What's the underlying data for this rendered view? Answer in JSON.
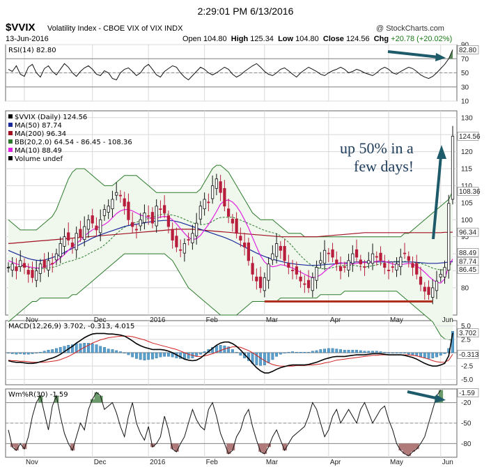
{
  "timestamp": "2:29:01 PM 6/13/2016",
  "header": {
    "symbol": "$VVIX",
    "name": "Volatility Index - CBOE VIX of VIX INDX",
    "credit": "@ StockCharts.com",
    "date": "13-Jun-2016",
    "open_label": "Open",
    "open": "104.80",
    "high_label": "High",
    "high": "125.34",
    "low_label": "Low",
    "low": "104.80",
    "close_label": "Close",
    "close": "124.56",
    "chg_label": "Chg",
    "chg": "+20.78 (+20.02%)"
  },
  "chart_data": [
    {
      "type": "line",
      "panel": "RSI",
      "legend": "RSI(14) 82.80",
      "ylim": [
        10,
        90
      ],
      "yticks": [
        90,
        70,
        50,
        30,
        10
      ],
      "last_value_label": "82.80",
      "values": [
        55,
        52,
        60,
        48,
        45,
        58,
        62,
        50,
        44,
        56,
        60,
        52,
        47,
        55,
        63,
        58,
        50,
        45,
        52,
        57,
        60,
        55,
        48,
        46,
        53,
        50,
        42,
        40,
        50,
        55,
        57,
        52,
        46,
        50,
        58,
        62,
        55,
        47,
        44,
        52,
        56,
        60,
        58,
        50,
        44,
        40,
        46,
        52,
        58,
        55,
        50,
        47,
        50,
        54,
        58,
        55,
        48,
        44,
        47,
        52,
        56,
        60,
        63,
        58,
        52,
        48,
        46,
        50,
        55,
        57,
        53,
        48,
        44,
        50,
        54,
        58,
        55,
        52,
        48,
        46,
        50,
        53,
        55,
        58,
        55,
        50,
        52,
        55,
        53,
        50,
        48,
        46,
        50,
        55,
        58,
        55,
        50,
        48,
        52,
        55,
        58,
        56,
        52,
        47,
        44,
        42,
        45,
        50,
        56,
        62,
        70,
        82.8
      ],
      "annotation": "arrow down-right to latest reading"
    },
    {
      "type": "candlestick",
      "panel": "price",
      "legend": [
        "$VVIX (Daily) 124.56",
        "MA(50) 87.74",
        "MA(200) 96.34",
        "BB(20,2.0) 64.54 - 86.45 - 108.36",
        "MA(10) 88.49",
        "Volume undef"
      ],
      "series_colors": {
        "MA50": "#1a2a9a",
        "MA200": "#a01020",
        "BB": "#2a7a2a",
        "MA10": "#e020e0"
      },
      "ylim": [
        72,
        132
      ],
      "yticks": [
        130,
        125,
        120,
        115,
        110,
        105,
        100,
        95,
        90,
        85,
        80
      ],
      "price_labels": [
        "124.56",
        "108.36",
        "96.34",
        "87.74",
        "86.45",
        "88.49"
      ],
      "x_labels": [
        "Nov",
        "Dec",
        "2016",
        "Feb",
        "Mar",
        "Apr",
        "May",
        "Jun"
      ],
      "close": [
        86,
        87,
        85,
        88,
        86,
        84,
        83,
        85,
        87,
        86,
        88,
        87,
        90,
        93,
        95,
        94,
        92,
        96,
        95,
        98,
        100,
        99,
        97,
        100,
        103,
        104,
        106,
        108,
        107,
        104,
        100,
        98,
        97,
        100,
        102,
        101,
        99,
        104,
        103,
        102,
        98,
        94,
        92,
        91,
        93,
        94,
        96,
        99,
        104,
        106,
        105,
        110,
        112,
        108,
        104,
        101,
        99,
        96,
        94,
        92,
        88,
        84,
        82,
        80,
        83,
        87,
        90,
        93,
        91,
        88,
        86,
        85,
        84,
        82,
        81,
        80,
        83,
        86,
        88,
        91,
        90,
        89,
        87,
        85,
        86,
        88,
        90,
        89,
        87,
        86,
        88,
        90,
        89,
        88,
        86,
        85,
        86,
        87,
        89,
        90,
        88,
        86,
        84,
        81,
        79,
        78,
        80,
        82,
        84,
        86,
        104.8,
        124.56
      ],
      "ma50": [
        91,
        90.5,
        90,
        89.5,
        89,
        88.6,
        88.3,
        88.1,
        88,
        88.2,
        88.5,
        88.9,
        89.3,
        89.8,
        90.4,
        91,
        91.6,
        92.2,
        92.8,
        93.4,
        94,
        94.6,
        95.1,
        95.6,
        96,
        96.4,
        96.8,
        97.2,
        97.6,
        98,
        98.3,
        98.5,
        98.7,
        98.9,
        99.1,
        99.3,
        99.5,
        99.6,
        99.7,
        99.8,
        99.8,
        99.7,
        99.5,
        99.2,
        98.8,
        98.4,
        98,
        97.6,
        97.2,
        96.8,
        96.4,
        96,
        95.6,
        95.2,
        94.8,
        94.3,
        93.8,
        93.2,
        92.6,
        92,
        91.4,
        90.8,
        90.2,
        89.7,
        89.2,
        88.8,
        88.4,
        88.1,
        87.8,
        87.5,
        87.3,
        87.1,
        86.9,
        86.8,
        86.7,
        86.6,
        86.6,
        86.6,
        86.7,
        86.8,
        86.9,
        87,
        87.1,
        87.2,
        87.3,
        87.4,
        87.5,
        87.6,
        87.6,
        87.6,
        87.6,
        87.6,
        87.6,
        87.6,
        87.6,
        87.6,
        87.6,
        87.6,
        87.6,
        87.6,
        87.6,
        87.6,
        87.5,
        87.4,
        87.3,
        87.2,
        87.2,
        87.2,
        87.3,
        87.4,
        87.6,
        87.74
      ],
      "ma200": [
        93,
        93.1,
        93.2,
        93.3,
        93.4,
        93.5,
        93.6,
        93.7,
        93.8,
        93.9,
        94,
        94.1,
        94.2,
        94.3,
        94.4,
        94.5,
        94.6,
        94.7,
        94.8,
        94.9,
        95,
        95.1,
        95.2,
        95.3,
        95.4,
        95.5,
        95.6,
        95.7,
        95.8,
        95.9,
        96,
        96.1,
        96.2,
        96.3,
        96.4,
        96.5,
        96.6,
        96.7,
        96.8,
        96.9,
        97,
        97.1,
        97.2,
        97.2,
        97.2,
        97.2,
        97.2,
        97.1,
        97,
        96.9,
        96.8,
        96.7,
        96.6,
        96.5,
        96.4,
        96.3,
        96.2,
        96.1,
        96,
        95.9,
        95.8,
        95.7,
        95.6,
        95.5,
        95.4,
        95.3,
        95.2,
        95.1,
        95,
        95,
        95,
        95,
        95,
        95,
        95,
        95,
        95,
        95,
        95.1,
        95.2,
        95.3,
        95.4,
        95.5,
        95.6,
        95.7,
        95.8,
        95.9,
        96,
        96.1,
        96.2,
        96.2,
        96.2,
        96.2,
        96.2,
        96.2,
        96.2,
        96.2,
        96.2,
        96.2,
        96.2,
        96.2,
        96.2,
        96.2,
        96.2,
        96.2,
        96.2,
        96.2,
        96.2,
        96.2,
        96.3,
        96.3,
        96.34
      ],
      "ma10": [
        88,
        87.5,
        87,
        86.8,
        86.5,
        86.2,
        86,
        85.8,
        85.9,
        86.2,
        86.6,
        87,
        87.8,
        88.8,
        89.8,
        91,
        92.2,
        93,
        94,
        95.2,
        96.2,
        97,
        97.6,
        98,
        98.6,
        99.4,
        100.6,
        101.8,
        102.6,
        103,
        103,
        102.6,
        102,
        101.4,
        101,
        100.6,
        100.3,
        100.5,
        100.8,
        101,
        100.8,
        100,
        98.8,
        97.4,
        96,
        94.8,
        94.2,
        94.4,
        95.4,
        97,
        98.6,
        100.4,
        102.4,
        104.6,
        105.6,
        105.8,
        105.2,
        104,
        102.2,
        100,
        97.6,
        94.8,
        92,
        89.4,
        87.6,
        86.6,
        86.2,
        86.4,
        86.8,
        86.6,
        86.2,
        85.8,
        85.2,
        84.6,
        84,
        83.4,
        83,
        83.2,
        83.8,
        84.8,
        85.8,
        86.6,
        87.2,
        87.4,
        87.2,
        87,
        87,
        87.2,
        87.4,
        87.4,
        87.4,
        87.6,
        87.8,
        88,
        87.8,
        87.4,
        87,
        86.8,
        86.8,
        87,
        87.2,
        87,
        86.4,
        85.6,
        84.6,
        83.4,
        82.4,
        81.6,
        81.4,
        82.6,
        86.4,
        88.49
      ],
      "bb_upper": [
        100,
        99,
        98,
        97,
        97,
        97,
        97,
        97,
        98,
        99,
        100,
        101,
        103,
        106,
        109,
        112,
        114,
        115,
        115,
        115,
        114,
        113,
        112,
        111,
        110,
        110,
        110,
        111,
        112,
        113,
        113,
        113,
        113,
        112,
        111,
        110,
        109,
        108,
        108,
        108,
        108,
        108,
        108,
        108,
        108,
        108,
        108,
        108,
        109,
        111,
        113,
        115,
        116,
        116,
        115,
        114,
        112,
        110,
        108,
        106,
        104,
        102,
        101,
        100,
        100,
        100,
        100,
        99,
        98,
        97,
        96,
        96,
        96,
        96,
        95,
        95,
        95,
        95,
        95,
        95,
        95,
        95,
        95,
        95,
        95,
        95,
        95,
        95,
        95,
        95,
        95,
        95,
        95,
        95,
        95,
        95,
        95,
        95,
        95,
        96,
        96,
        97,
        98,
        99,
        100,
        101,
        102,
        103,
        104,
        105,
        106,
        108.36
      ],
      "bb_lower": [
        70,
        71,
        72,
        73,
        74,
        75,
        76,
        76,
        77,
        77,
        77,
        77,
        77,
        77,
        77,
        77,
        78,
        78,
        79,
        80,
        81,
        82,
        83,
        84,
        85,
        86,
        87,
        88,
        89,
        90,
        90,
        90,
        90,
        90,
        90,
        90,
        90,
        90,
        90,
        90,
        89,
        88,
        86,
        84,
        82,
        80,
        79,
        78,
        77,
        76,
        75,
        74,
        73,
        72,
        72,
        72,
        72,
        72,
        73,
        74,
        75,
        76,
        76,
        76,
        76,
        76,
        76,
        76,
        77,
        77,
        77,
        77,
        77,
        77,
        77,
        77,
        77,
        77,
        78,
        78,
        78,
        78,
        78,
        78,
        79,
        79,
        79,
        79,
        79,
        79,
        79,
        79,
        79,
        79,
        79,
        79,
        79,
        79,
        78,
        77,
        76,
        75,
        74,
        73,
        72,
        71,
        70,
        68,
        66,
        65,
        64.8,
        64.54
      ],
      "annotation": "up 50% in a few days!"
    },
    {
      "type": "bar",
      "panel": "MACD",
      "legend": "MACD(12,26,9) 3.702, -0.313, 4.015",
      "ylim": [
        -6,
        6
      ],
      "yticks": [
        5,
        2.5,
        0,
        -2.5,
        -5
      ],
      "tick_labels": [
        "5.0",
        "2.5",
        "0.0",
        "-2.5",
        "-5.0"
      ],
      "price_labels": [
        "3.702",
        "-0.313"
      ],
      "macd": [
        -1.5,
        -1.7,
        -1.8,
        -1.8,
        -1.9,
        -2,
        -2,
        -1.9,
        -1.7,
        -1.5,
        -1.2,
        -1,
        -0.7,
        -0.3,
        0.2,
        0.7,
        1.2,
        1.8,
        2.3,
        2.8,
        3.2,
        3.5,
        3.6,
        3.6,
        3.6,
        3.5,
        3.5,
        3.4,
        3.3,
        3.1,
        2.7,
        2.2,
        1.7,
        1.3,
        1,
        0.8,
        0.6,
        0.6,
        0.6,
        0.5,
        0.3,
        0,
        -0.4,
        -0.8,
        -1.2,
        -1.4,
        -1.5,
        -1.4,
        -1,
        -0.4,
        0.2,
        0.8,
        1.4,
        1.8,
        2,
        2,
        1.7,
        1.2,
        0.5,
        -0.3,
        -1.1,
        -2,
        -2.8,
        -3.4,
        -3.8,
        -3.8,
        -3.5,
        -3.1,
        -2.8,
        -2.6,
        -2.4,
        -2.3,
        -2.3,
        -2.3,
        -2.3,
        -2.2,
        -2,
        -1.8,
        -1.5,
        -1.2,
        -1,
        -0.8,
        -0.7,
        -0.7,
        -0.7,
        -0.6,
        -0.5,
        -0.4,
        -0.4,
        -0.4,
        -0.3,
        -0.2,
        -0.2,
        -0.2,
        -0.3,
        -0.4,
        -0.4,
        -0.4,
        -0.4,
        -0.5,
        -0.7,
        -0.9,
        -1.2,
        -1.6,
        -2,
        -2.3,
        -2.5,
        -2.5,
        -2.3,
        -2,
        -0.6,
        3.702
      ],
      "signal": [
        -1.4,
        -1.5,
        -1.5,
        -1.6,
        -1.6,
        -1.7,
        -1.8,
        -1.8,
        -1.8,
        -1.8,
        -1.7,
        -1.6,
        -1.5,
        -1.3,
        -1,
        -0.7,
        -0.3,
        0.1,
        0.6,
        1,
        1.4,
        1.8,
        2.1,
        2.4,
        2.6,
        2.8,
        2.9,
        3,
        3.1,
        3.1,
        3.1,
        3,
        2.8,
        2.6,
        2.4,
        2.1,
        1.8,
        1.6,
        1.4,
        1.2,
        1,
        0.8,
        0.6,
        0.3,
        0,
        -0.3,
        -0.5,
        -0.7,
        -0.7,
        -0.6,
        -0.4,
        -0.2,
        0.1,
        0.4,
        0.7,
        0.9,
        1.1,
        1.1,
        1,
        0.7,
        0.4,
        0,
        -0.5,
        -1,
        -1.5,
        -1.9,
        -2.2,
        -2.4,
        -2.5,
        -2.5,
        -2.5,
        -2.5,
        -2.4,
        -2.4,
        -2.4,
        -2.3,
        -2.3,
        -2.2,
        -2.1,
        -1.9,
        -1.8,
        -1.6,
        -1.4,
        -1.3,
        -1.2,
        -1.1,
        -1,
        -0.9,
        -0.8,
        -0.7,
        -0.6,
        -0.5,
        -0.5,
        -0.4,
        -0.4,
        -0.4,
        -0.4,
        -0.4,
        -0.4,
        -0.4,
        -0.4,
        -0.5,
        -0.6,
        -0.8,
        -1,
        -1.2,
        -1.5,
        -1.7,
        -1.8,
        -1.8,
        -1.4,
        -0.313
      ]
    },
    {
      "type": "line",
      "panel": "Williams %R",
      "legend": "Wm%R(30) -1.59",
      "ylim": [
        -100,
        0
      ],
      "yticks": [
        -20,
        -50,
        -80
      ],
      "last_value_label": "-1.59",
      "values": [
        -60,
        -85,
        -90,
        -80,
        -88,
        -70,
        -40,
        -20,
        -10,
        -35,
        -60,
        -25,
        -10,
        -40,
        -65,
        -80,
        -90,
        -70,
        -50,
        -60,
        -30,
        -15,
        -5,
        -10,
        -30,
        -25,
        -20,
        -35,
        -55,
        -70,
        -40,
        -20,
        -50,
        -65,
        -75,
        -55,
        -85,
        -80,
        -70,
        -40,
        -60,
        -88,
        -92,
        -80,
        -70,
        -50,
        -30,
        -45,
        -55,
        -60,
        -30,
        -20,
        -40,
        -65,
        -80,
        -95,
        -90,
        -70,
        -60,
        -40,
        -30,
        -55,
        -75,
        -92,
        -95,
        -85,
        -70,
        -60,
        -75,
        -90,
        -80,
        -70,
        -65,
        -60,
        -55,
        -40,
        -20,
        -30,
        -50,
        -70,
        -60,
        -40,
        -30,
        -50,
        -40,
        -30,
        -40,
        -50,
        -30,
        -20,
        -35,
        -50,
        -40,
        -30,
        -25,
        -45,
        -60,
        -80,
        -90,
        -95,
        -98,
        -92,
        -88,
        -80,
        -70,
        -50,
        -30,
        -10,
        -1.59
      ],
      "annotation": "arrow down-right to latest reading"
    }
  ]
}
